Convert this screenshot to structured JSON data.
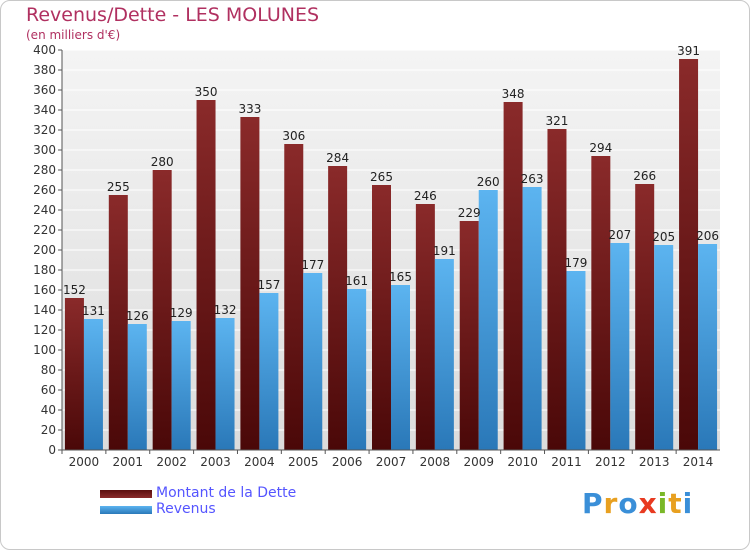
{
  "header": {
    "title": "Revenus/Dette - LES MOLUNES",
    "subtitle": "(en milliers d'€)"
  },
  "legend": [
    {
      "label": "Montant de la Dette",
      "color": "#7a1c1c"
    },
    {
      "label": "Revenus",
      "color": "#4ea6e8"
    }
  ],
  "logo": {
    "text": "Proxiti"
  },
  "chart_data": {
    "type": "bar",
    "title": "Revenus/Dette - LES MOLUNES",
    "ylabel": "(en milliers d'€)",
    "xlabel": "",
    "ylim": [
      0,
      400
    ],
    "ytick_step": 20,
    "grid": true,
    "legend_position": "bottom-left",
    "categories": [
      "2000",
      "2001",
      "2002",
      "2003",
      "2004",
      "2005",
      "2006",
      "2007",
      "2008",
      "2009",
      "2010",
      "2011",
      "2012",
      "2013",
      "2014"
    ],
    "series": [
      {
        "name": "Montant de la Dette",
        "color": "#7a1c1c",
        "values": [
          152,
          255,
          280,
          350,
          333,
          306,
          284,
          265,
          246,
          229,
          348,
          321,
          294,
          266,
          391
        ]
      },
      {
        "name": "Revenus",
        "color": "#4ea6e8",
        "values": [
          131,
          126,
          129,
          132,
          157,
          177,
          161,
          165,
          191,
          260,
          263,
          179,
          207,
          205,
          206
        ]
      }
    ]
  }
}
